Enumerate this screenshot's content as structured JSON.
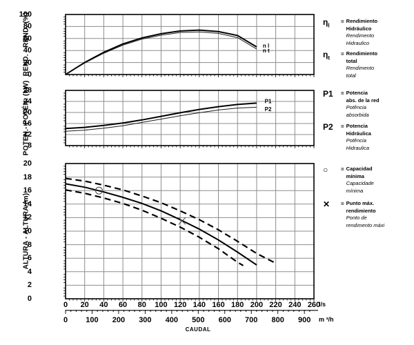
{
  "colors": {
    "background": "#ffffff",
    "grid": "#8c8c8c",
    "frame": "#000000",
    "curve": "#000000",
    "marker": "#444444"
  },
  "styles": {
    "solid-thick": {
      "color": "#000000",
      "width": 2
    },
    "solid-thin": {
      "color": "#1a1a1a",
      "width": 1
    },
    "dashed-thick": {
      "color": "#000000",
      "width": 2.2,
      "dash": "9,5.5"
    }
  },
  "x_axis": {
    "label": "CAUDAL",
    "ls": {
      "unit": "l/s",
      "ticks": [
        0,
        20,
        40,
        60,
        80,
        100,
        120,
        140,
        160,
        180,
        200,
        220,
        240,
        260
      ]
    },
    "m3h": {
      "unit": "m ³/h",
      "ticks": [
        0,
        100,
        200,
        300,
        400,
        500,
        600,
        700,
        800,
        900
      ]
    }
  },
  "chart_data": [
    {
      "type": "line",
      "ylabel": "REND. - REND. (%)",
      "xlim": [
        0,
        260
      ],
      "ylim": [
        0,
        100
      ],
      "yticks": [
        0,
        20,
        40,
        60,
        80,
        100
      ],
      "x": [
        0,
        20,
        40,
        60,
        80,
        100,
        120,
        140,
        160,
        180,
        200
      ],
      "series": [
        {
          "name": "n l",
          "style": "solid-thick",
          "values": [
            0,
            20,
            37,
            51,
            61,
            68,
            72.5,
            74,
            71.5,
            65,
            46
          ]
        },
        {
          "name": "n t",
          "style": "solid-thin",
          "values": [
            0,
            19,
            35.5,
            49,
            59,
            65.5,
            70,
            71,
            68.5,
            61.5,
            42.5
          ]
        }
      ],
      "labels": [
        {
          "text": "n l",
          "x": 205,
          "y": 48
        },
        {
          "text": "n t",
          "x": 205,
          "y": 40
        }
      ]
    },
    {
      "type": "line",
      "ylabel": "POTEN.- POTÉN. (kW)",
      "xlim": [
        0,
        260
      ],
      "ylim": [
        8,
        28
      ],
      "yticks": [
        8,
        12,
        16,
        20,
        24,
        28
      ],
      "x": [
        0,
        20,
        40,
        60,
        80,
        100,
        120,
        140,
        160,
        180,
        200
      ],
      "series": [
        {
          "name": "P1",
          "style": "solid-thick",
          "values": [
            14.2,
            14.6,
            15.3,
            16.2,
            17.3,
            18.6,
            19.9,
            21.1,
            22.1,
            22.9,
            23.4
          ]
        },
        {
          "name": "P2",
          "style": "solid-thin",
          "values": [
            13.2,
            13.6,
            14.3,
            15.2,
            16.4,
            17.6,
            18.8,
            19.9,
            20.9,
            21.6,
            21.9
          ]
        }
      ],
      "labels": [
        {
          "text": "P1",
          "x": 207,
          "y": 24.1
        },
        {
          "text": "P2",
          "x": 207,
          "y": 21.2
        }
      ]
    },
    {
      "type": "line",
      "ylabel": "ALTURA - ALTURA (m)",
      "xlim": [
        0,
        260
      ],
      "ylim": [
        0,
        20
      ],
      "yticks": [
        0,
        2,
        4,
        6,
        8,
        10,
        12,
        14,
        16,
        18,
        20
      ],
      "series": [
        {
          "name": "solid",
          "style": "solid-thick",
          "x": [
            0,
            20,
            40,
            60,
            80,
            100,
            120,
            140,
            160,
            180,
            200
          ],
          "values": [
            17.0,
            16.5,
            15.8,
            15.0,
            14.1,
            13.0,
            11.7,
            10.3,
            8.7,
            6.9,
            5.0
          ]
        },
        {
          "name": "dashed-upper",
          "style": "dashed-thick",
          "x": [
            0,
            20,
            40,
            60,
            80,
            100,
            120,
            140,
            160,
            180,
            200,
            218
          ],
          "values": [
            17.8,
            17.4,
            16.8,
            16.1,
            15.2,
            14.2,
            13.0,
            11.7,
            10.2,
            8.5,
            6.7,
            5.4
          ]
        },
        {
          "name": "dashed-lower",
          "style": "dashed-thick",
          "x": [
            0,
            20,
            40,
            60,
            80,
            100,
            120,
            140,
            160,
            180,
            186
          ],
          "values": [
            16.1,
            15.6,
            14.9,
            14.1,
            13.1,
            11.9,
            10.6,
            9.1,
            7.4,
            5.4,
            4.9
          ]
        }
      ],
      "markers": [
        {
          "shape": "circle",
          "x": 35,
          "y": 16
        },
        {
          "shape": "x",
          "x": 122,
          "y": 11.5
        }
      ]
    }
  ],
  "legend": [
    {
      "symbol": "η",
      "sub": "l",
      "eq": "=",
      "lines": [
        "Rendimiento",
        "Hidráulico"
      ],
      "lines_pt": [
        "Rendimento",
        "Hidraulico"
      ]
    },
    {
      "symbol": "η",
      "sub": "t",
      "eq": "=",
      "lines": [
        "Rendimiento",
        "total"
      ],
      "lines_pt": [
        "Rendimento",
        "total"
      ]
    },
    {
      "symbol": "P1",
      "sub": "",
      "eq": "=",
      "lines": [
        "Potencia",
        "abs. de la red"
      ],
      "lines_pt": [
        "Potência",
        "absorbida"
      ]
    },
    {
      "symbol": "P2",
      "sub": "",
      "eq": "=",
      "lines": [
        "Potencia",
        "Hidráulica"
      ],
      "lines_pt": [
        "Potência",
        "Hidraulica"
      ]
    },
    {
      "symbol": "○",
      "sub": "",
      "eq": "=",
      "lines": [
        "Capacidad",
        "mínima"
      ],
      "lines_pt": [
        "Capacidade",
        "mínima"
      ]
    },
    {
      "symbol": "✕",
      "sub": "",
      "eq": "=",
      "lines": [
        "Punto máx.",
        "rendimiento"
      ],
      "lines_pt": [
        "Ponto de",
        "rendimento máxi"
      ]
    }
  ]
}
